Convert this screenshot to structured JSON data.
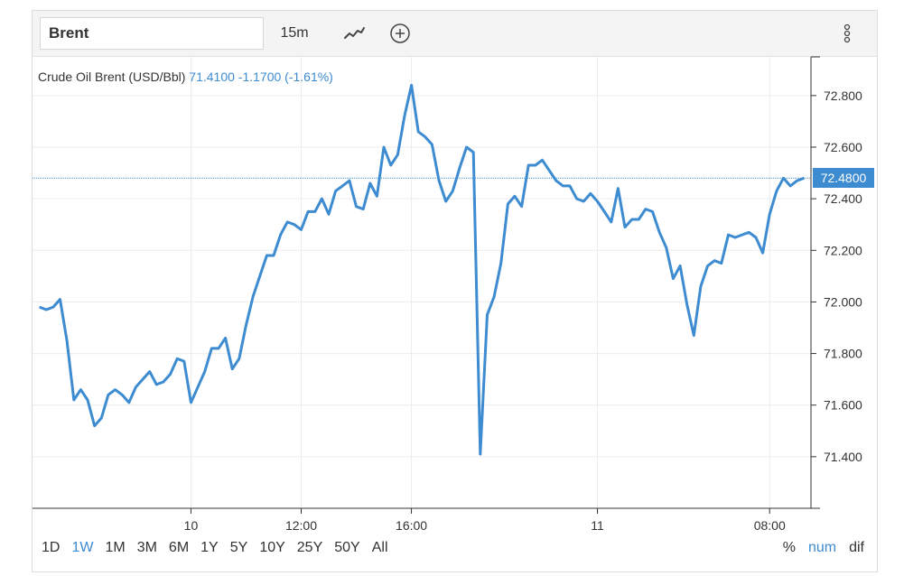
{
  "toolbar": {
    "symbol": "Brent",
    "interval": "15m",
    "chart_type_icon": "line-chart-icon",
    "add_icon": "plus-circle-icon",
    "menu_icon": "more-vertical-icon"
  },
  "legend": {
    "name": "Crude Oil Brent (USD/Bbl)",
    "last": "71.4100",
    "change": "-1.1700",
    "change_pct": "(-1.61%)"
  },
  "last_price_label": "72.4800",
  "colors": {
    "line": "#3d8bd0",
    "accent": "#3d8bd0",
    "grid": "#ececec"
  },
  "ranges": [
    {
      "label": "1D",
      "active": false
    },
    {
      "label": "1W",
      "active": true
    },
    {
      "label": "1M",
      "active": false
    },
    {
      "label": "3M",
      "active": false
    },
    {
      "label": "6M",
      "active": false
    },
    {
      "label": "1Y",
      "active": false
    },
    {
      "label": "5Y",
      "active": false
    },
    {
      "label": "10Y",
      "active": false
    },
    {
      "label": "25Y",
      "active": false
    },
    {
      "label": "50Y",
      "active": false
    },
    {
      "label": "All",
      "active": false
    }
  ],
  "modes": [
    {
      "label": "%",
      "active": false
    },
    {
      "label": "num",
      "active": true
    },
    {
      "label": "dif",
      "active": false
    }
  ],
  "chart_data": {
    "type": "line",
    "ylim": [
      71.2,
      72.95
    ],
    "yticks": [
      "72.800",
      "72.600",
      "72.400",
      "72.200",
      "72.000",
      "71.800",
      "71.600",
      "71.400"
    ],
    "xticks": [
      {
        "label": "10",
        "x": 22
      },
      {
        "label": "12:00",
        "x": 38
      },
      {
        "label": "16:00",
        "x": 54
      },
      {
        "label": "11",
        "x": 81
      },
      {
        "label": "08:00",
        "x": 106
      }
    ],
    "xlim": [
      -1,
      112
    ],
    "last_value": 72.48,
    "series": [
      {
        "values": [
          71.98,
          71.97,
          71.98,
          72.01,
          71.85,
          71.62,
          71.66,
          71.62,
          71.52,
          71.55,
          71.64,
          71.66,
          71.64,
          71.61,
          71.67,
          71.7,
          71.73,
          71.68,
          71.69,
          71.72,
          71.78,
          71.77,
          71.61,
          71.67,
          71.73,
          71.82,
          71.82,
          71.86,
          71.74,
          71.78,
          71.91,
          72.02,
          72.1,
          72.18,
          72.18,
          72.26,
          72.31,
          72.3,
          72.28,
          72.35,
          72.35,
          72.4,
          72.34,
          72.43,
          72.45,
          72.47,
          72.37,
          72.36,
          72.46,
          72.41,
          72.6,
          72.53,
          72.57,
          72.72,
          72.84,
          72.66,
          72.64,
          72.61,
          72.47,
          72.39,
          72.43,
          72.52,
          72.6,
          72.58,
          71.41,
          71.95,
          72.02,
          72.15,
          72.38,
          72.41,
          72.37,
          72.53,
          72.53,
          72.55,
          72.51,
          72.47,
          72.45,
          72.45,
          72.4,
          72.39,
          72.42,
          72.39,
          72.35,
          72.31,
          72.44,
          72.29,
          72.32,
          72.32,
          72.36,
          72.35,
          72.27,
          72.21,
          72.09,
          72.14,
          71.99,
          71.87,
          72.06,
          72.14,
          72.16,
          72.15,
          72.26,
          72.25,
          72.26,
          72.27,
          72.25,
          72.19,
          72.34,
          72.43,
          72.48,
          72.45,
          72.47,
          72.48
        ]
      }
    ]
  }
}
